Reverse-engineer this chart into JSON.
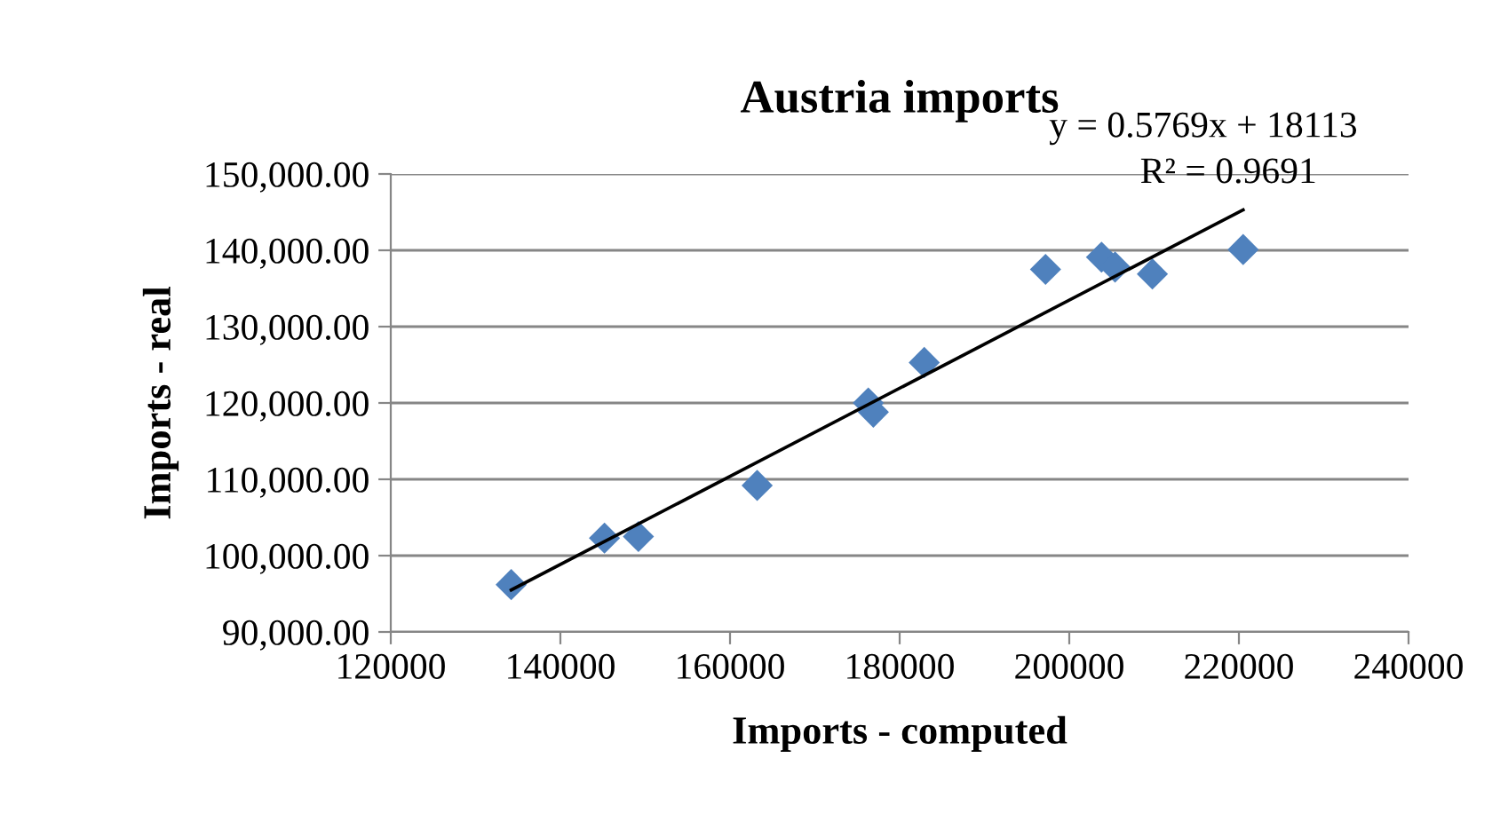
{
  "chart_data": {
    "type": "scatter",
    "title": "Austria imports",
    "xlabel": "Imports - computed",
    "ylabel": "Imports - real",
    "annotations": [
      "y = 0.5769x + 18113",
      "R² = 0.9691"
    ],
    "series": [
      {
        "color": "#4f81bd",
        "marker": "diamond",
        "x": [
          134200,
          145200,
          149200,
          163200,
          176300,
          176900,
          182900,
          197200,
          203800,
          205400,
          209800,
          220500
        ],
        "values": [
          96200,
          102300,
          102500,
          109200,
          120000,
          118800,
          125300,
          137500,
          139100,
          137800,
          136900,
          140100
        ]
      },
      {
        "type": "line",
        "color": "#000000",
        "marker": "none",
        "x": [
          134200,
          220500
        ],
        "values": [
          95500,
          145300
        ]
      }
    ],
    "xlim": [
      120000,
      240000
    ],
    "xticks": [
      120000,
      140000,
      160000,
      180000,
      200000,
      220000,
      240000
    ],
    "ylim": [
      90000,
      150000
    ],
    "yticks": [
      {
        "value": 90000,
        "label": "90,000.00"
      },
      {
        "value": 100000,
        "label": "100,000.00"
      },
      {
        "value": 110000,
        "label": "110,000.00"
      },
      {
        "value": 120000,
        "label": "120,000.00"
      },
      {
        "value": 130000,
        "label": "130,000.00"
      },
      {
        "value": 140000,
        "label": "140,000.00"
      },
      {
        "value": 150000,
        "label": "150,000.00"
      }
    ],
    "grid": "y",
    "legend": false
  }
}
